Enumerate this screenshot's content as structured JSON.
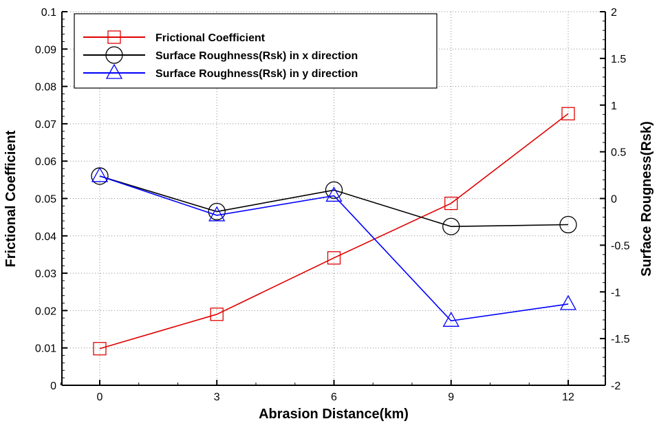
{
  "chart_data": {
    "type": "line",
    "title": "",
    "xlabel": "Abrasion Distance(km)",
    "ylabel": "Frictional Coefficient",
    "y2label": "Surface Rougness(Rsk)",
    "x": [
      0,
      3,
      6,
      9,
      12
    ],
    "xlim": [
      -1,
      12.96
    ],
    "xticks": [
      "0",
      "3",
      "6",
      "9",
      "12"
    ],
    "ylim": [
      0,
      0.1
    ],
    "yticks": [
      "0",
      "0.01",
      "0.02",
      "0.03",
      "0.04",
      "0.05",
      "0.06",
      "0.07",
      "0.08",
      "0.09",
      "0.1"
    ],
    "y2lim": [
      -2,
      2
    ],
    "y2ticks": [
      "-2",
      "-1.5",
      "-1",
      "-0.5",
      "0",
      "0.5",
      "1",
      "1.5",
      "2"
    ],
    "grid": true,
    "legend_position": "top-left",
    "series": [
      {
        "name": "Frictional Coefficient",
        "axis": "left",
        "color": "#e00000",
        "marker": "square",
        "values": [
          0.0098,
          0.019,
          0.0341,
          0.0487,
          0.0727
        ]
      },
      {
        "name": "Surface Roughness(Rsk) in x direction",
        "axis": "right",
        "color": "#000000",
        "marker": "circle",
        "values": [
          0.24,
          -0.14,
          0.09,
          -0.3,
          -0.28
        ]
      },
      {
        "name": "Surface Roughness(Rsk) in y direction",
        "axis": "right",
        "color": "#0000ff",
        "marker": "triangle",
        "values": [
          0.24,
          -0.18,
          0.03,
          -1.31,
          -1.13
        ]
      }
    ]
  }
}
